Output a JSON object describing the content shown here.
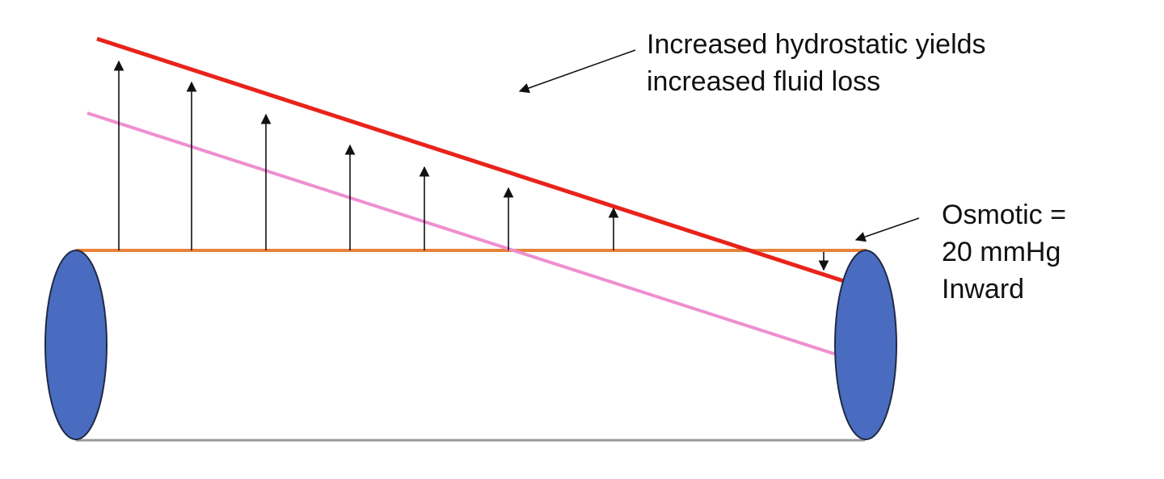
{
  "annotations": {
    "hydrostatic": {
      "line1": "Increased hydrostatic yields",
      "line2": "increased fluid loss"
    },
    "osmotic": {
      "line1": "Osmotic =",
      "line2": "20 mmHg",
      "line3": "Inward"
    }
  },
  "colors": {
    "vessel_end": "#4a6cc0",
    "vessel_outline": "#9a9a9a",
    "osmotic_line": "#e8823a",
    "increased_hydrostatic_line": "#e8231b",
    "normal_hydrostatic_line": "#ee8fd0",
    "arrows": "#111111"
  },
  "filtration_arrows": {
    "direction": "outward",
    "count": 7
  },
  "osmotic_arrow": {
    "direction": "inward",
    "count": 1
  }
}
